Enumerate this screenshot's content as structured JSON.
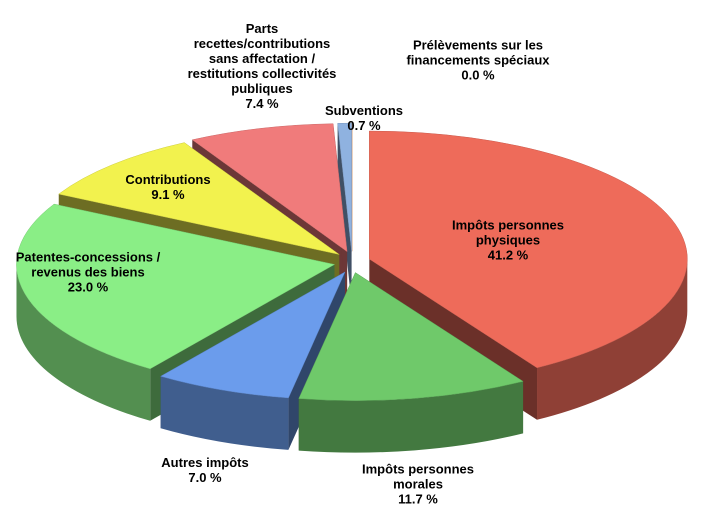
{
  "chart_data": {
    "type": "pie3d",
    "categories": [
      "Impôts personnes physiques",
      "Impôts personnes morales",
      "Autres impôts",
      "Patentes-concessions / revenus des biens",
      "Contributions",
      "Parts recettes/contributions sans affectation / restitutions collectivités publiques",
      "Subventions",
      "Prélèvements sur les financements spéciaux"
    ],
    "values": [
      41.2,
      11.7,
      7.0,
      23.0,
      9.1,
      7.4,
      0.7,
      0.0
    ],
    "value_labels": [
      "41.2 %",
      "11.7 %",
      "7.0 %",
      "23.0 %",
      "9.1 %",
      "7.4 %",
      "0.7 %",
      "0.0 %"
    ],
    "colors": [
      "#ee6b5a",
      "#6fc96a",
      "#6b9cec",
      "#8aee86",
      "#f2f24e",
      "#f07b7b",
      "#8fb2e0",
      "#f0a060"
    ]
  }
}
